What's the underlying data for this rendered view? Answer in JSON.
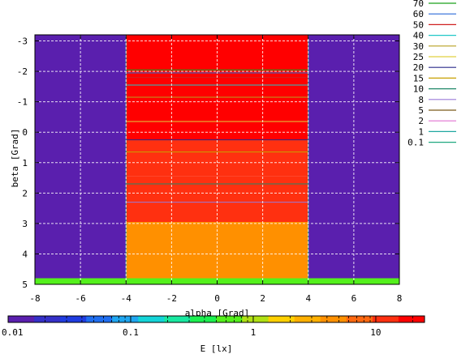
{
  "chart_data": {
    "type": "heatmap",
    "xlabel": "alpha [Grad]",
    "ylabel": "beta [Grad]",
    "colorbar_label": "E [lx]",
    "xlim": [
      -8,
      8
    ],
    "ylim": [
      -3.2,
      5
    ],
    "y_inverted": true,
    "grid": true,
    "xticks": [
      -8,
      -6,
      -4,
      -2,
      0,
      2,
      4,
      6,
      8
    ],
    "yticks": [
      -3,
      -2,
      -1,
      0,
      1,
      2,
      3,
      4,
      5
    ],
    "colorbar_ticks": [
      {
        "value": 0.01,
        "label": "0.01"
      },
      {
        "value": 0.1,
        "label": "0.1"
      },
      {
        "value": 1,
        "label": "1"
      },
      {
        "value": 10,
        "label": "10"
      }
    ],
    "colorbar_range": [
      0.01,
      25
    ],
    "colorbar_scale": "log",
    "colorbar_colors": [
      "#5a1fae",
      "#3530c8",
      "#1f3ce0",
      "#1f6ef0",
      "#1fa6f0",
      "#14d4d8",
      "#18e8a0",
      "#1cf050",
      "#54f01c",
      "#b0e014",
      "#ffd000",
      "#ffb000",
      "#ff9000",
      "#ff6810",
      "#ff3010",
      "#ff0000"
    ],
    "legend": {
      "placement": "right",
      "entries": [
        {
          "label": "70",
          "color": "#1aa01a"
        },
        {
          "label": "60",
          "color": "#2a6ad8"
        },
        {
          "label": "50",
          "color": "#d02020"
        },
        {
          "label": "40",
          "color": "#20c8c8"
        },
        {
          "label": "30",
          "color": "#b8a020"
        },
        {
          "label": "25",
          "color": "#e0d040"
        },
        {
          "label": "20",
          "color": "#2a2a8a"
        },
        {
          "label": "15",
          "color": "#c8a000"
        },
        {
          "label": "10",
          "color": "#208868"
        },
        {
          "label": "8",
          "color": "#9a7ad8"
        },
        {
          "label": "5",
          "color": "#7a5a1a"
        },
        {
          "label": "2",
          "color": "#e070d0"
        },
        {
          "label": "1",
          "color": "#20a8a0"
        },
        {
          "label": "0.1",
          "color": "#20a880"
        }
      ]
    },
    "regions": [
      {
        "x": [
          -8,
          -4
        ],
        "y": [
          -3.2,
          4.8
        ],
        "value": 0.01
      },
      {
        "x": [
          4,
          8
        ],
        "y": [
          -3.2,
          4.8
        ],
        "value": 0.01
      },
      {
        "x": [
          -4,
          4
        ],
        "y": [
          -3.2,
          0.25
        ],
        "value": 25
      },
      {
        "x": [
          -4,
          4
        ],
        "y": [
          0.25,
          1.45
        ],
        "value": 15
      },
      {
        "x": [
          -4,
          4
        ],
        "y": [
          1.45,
          2.95
        ],
        "value": 10
      },
      {
        "x": [
          -4,
          4
        ],
        "y": [
          2.95,
          4.8
        ],
        "value": 5
      },
      {
        "x": [
          -8,
          8
        ],
        "y": [
          4.8,
          5.0
        ],
        "value": 0.8
      }
    ],
    "contours": [
      {
        "level": "70",
        "y": -2.05
      },
      {
        "level": "60",
        "y": -1.95
      },
      {
        "level": "50",
        "y": -1.8
      },
      {
        "level": "40",
        "y": -1.55
      },
      {
        "level": "30",
        "y": -1.15
      },
      {
        "level": "25",
        "y": -0.35
      },
      {
        "level": "20",
        "y": 0.25
      },
      {
        "level": "15",
        "y": 0.65
      },
      {
        "level": "10",
        "y": 1.7
      },
      {
        "level": "8",
        "y": 2.3
      }
    ],
    "region_boundaries_x": [
      -4,
      4
    ]
  }
}
